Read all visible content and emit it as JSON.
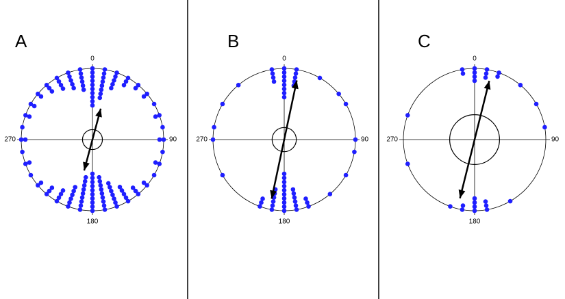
{
  "chart_data": [
    {
      "type": "circular-dots",
      "panel_label": "A",
      "direction_labels": [
        "0",
        "90",
        "180",
        "270"
      ],
      "color": "#1f1fff",
      "angles": [
        0,
        10,
        20,
        30,
        40,
        50,
        60,
        70,
        80,
        90,
        100,
        110,
        120,
        130,
        140,
        150,
        160,
        170,
        180,
        190,
        200,
        210,
        220,
        230,
        240,
        250,
        260,
        270,
        280,
        290,
        300,
        310,
        320,
        330,
        340,
        350
      ],
      "counts": [
        10,
        8,
        5,
        3,
        2,
        2,
        1,
        2,
        1,
        2,
        1,
        2,
        1,
        2,
        3,
        5,
        7,
        9,
        10,
        9,
        6,
        4,
        3,
        2,
        1,
        2,
        1,
        2,
        1,
        2,
        2,
        2,
        3,
        4,
        5,
        6
      ],
      "mean_angle": 15,
      "mean_length": 0.45,
      "ci_radius": 0.14
    },
    {
      "type": "circular-dots",
      "panel_label": "B",
      "direction_labels": [
        "0",
        "90",
        "180",
        "270"
      ],
      "color": "#1f1fff",
      "angles": [
        0,
        10,
        30,
        50,
        60,
        90,
        100,
        120,
        140,
        160,
        170,
        180,
        190,
        200,
        240,
        270,
        280,
        300,
        320,
        350
      ],
      "counts": [
        8,
        5,
        1,
        1,
        1,
        1,
        1,
        1,
        1,
        3,
        6,
        10,
        6,
        3,
        1,
        1,
        1,
        1,
        1,
        4
      ],
      "mean_angle": 12,
      "mean_length": 0.85,
      "ci_radius": 0.17
    },
    {
      "type": "circular-dots",
      "panel_label": "C",
      "direction_labels": [
        "0",
        "90",
        "180",
        "270"
      ],
      "color": "#1f1fff",
      "angles": [
        0,
        10,
        20,
        40,
        60,
        80,
        150,
        170,
        180,
        190,
        200,
        250,
        290,
        350
      ],
      "counts": [
        4,
        3,
        2,
        1,
        1,
        1,
        1,
        3,
        4,
        2,
        1,
        1,
        1,
        2
      ],
      "mean_angle": 14,
      "mean_length": 0.85,
      "ci_radius": 0.35
    }
  ]
}
